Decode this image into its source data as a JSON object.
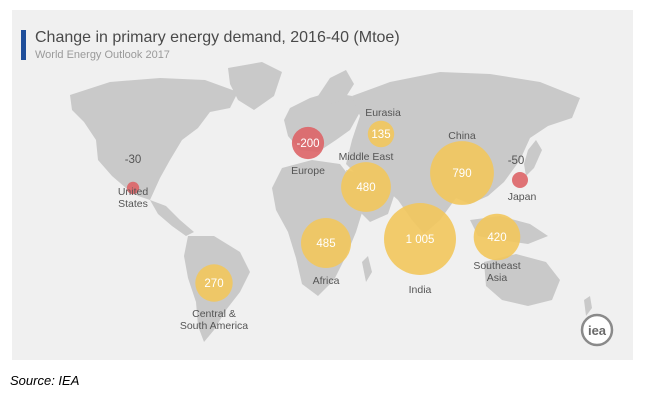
{
  "header": {
    "title": "Change in primary energy demand, 2016-40 (Mtoe)",
    "subtitle": "World Energy Outlook 2017"
  },
  "footer": {
    "source": "Source: IEA"
  },
  "logo": {
    "text": "iea",
    "icon": "iea-logo"
  },
  "colors": {
    "increase": "#f2c75c",
    "decrease": "#dd6467",
    "land": "#c9c9c9",
    "background": "#f0f0f0",
    "title_accent": "#1f4e9a"
  },
  "regions": [
    {
      "id": "united-states",
      "label_lines": [
        "United",
        "States"
      ],
      "value": -30,
      "value_text": "-30"
    },
    {
      "id": "europe",
      "label_lines": [
        "Europe"
      ],
      "value": -200,
      "value_text": "-200"
    },
    {
      "id": "eurasia",
      "label_lines": [
        "Eurasia"
      ],
      "value": 135,
      "value_text": "135"
    },
    {
      "id": "middle-east",
      "label_lines": [
        "Middle East"
      ],
      "value": 480,
      "value_text": "480"
    },
    {
      "id": "china",
      "label_lines": [
        "China"
      ],
      "value": 790,
      "value_text": "790"
    },
    {
      "id": "japan",
      "label_lines": [
        "Japan"
      ],
      "value": -50,
      "value_text": "-50"
    },
    {
      "id": "africa",
      "label_lines": [
        "Africa"
      ],
      "value": 485,
      "value_text": "485"
    },
    {
      "id": "india",
      "label_lines": [
        "India"
      ],
      "value": 1005,
      "value_text": "1 005"
    },
    {
      "id": "southeast-asia",
      "label_lines": [
        "Southeast",
        "Asia"
      ],
      "value": 420,
      "value_text": "420"
    },
    {
      "id": "central-south-america",
      "label_lines": [
        "Central &",
        "South America"
      ],
      "value": 270,
      "value_text": "270"
    }
  ]
}
